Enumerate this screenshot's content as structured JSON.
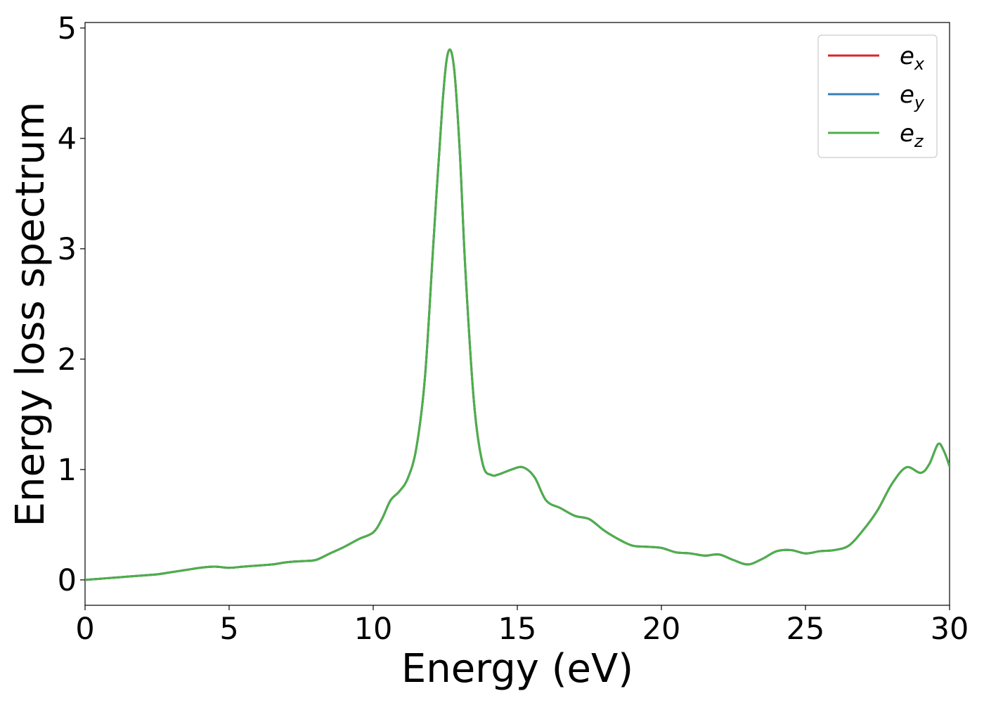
{
  "chart_data": {
    "type": "line",
    "xlabel": "Energy (eV)",
    "ylabel": "Energy loss spectrum",
    "xlim": [
      0,
      30
    ],
    "ylim": [
      -0.23,
      5.05
    ],
    "xticks": [
      "0",
      "5",
      "10",
      "15",
      "20",
      "25",
      "30"
    ],
    "yticks": [
      "0",
      "1",
      "2",
      "3",
      "4",
      "5"
    ],
    "grid": false,
    "legend_position": "top-right",
    "x": [
      0,
      0.5,
      1,
      1.5,
      2,
      2.5,
      3,
      3.5,
      4,
      4.5,
      5,
      5.5,
      6,
      6.5,
      7,
      7.5,
      8,
      8.5,
      9,
      9.5,
      10,
      10.3,
      10.6,
      10.9,
      11.2,
      11.5,
      11.8,
      12.1,
      12.4,
      12.6,
      12.8,
      13.0,
      13.2,
      13.5,
      13.8,
      14.1,
      14.4,
      14.8,
      15.2,
      15.6,
      16.0,
      16.5,
      17.0,
      17.5,
      18.0,
      18.5,
      19.0,
      19.5,
      20.0,
      20.5,
      21.0,
      21.5,
      22.0,
      22.5,
      23.0,
      23.5,
      24.0,
      24.5,
      25.0,
      25.5,
      26.0,
      26.5,
      27.0,
      27.5,
      28.0,
      28.5,
      29.0,
      29.3,
      29.6,
      29.8,
      30.0
    ],
    "series": [
      {
        "name": "e",
        "subscript": "x",
        "color": "#d62728",
        "values": [
          0.0,
          0.01,
          0.02,
          0.03,
          0.04,
          0.05,
          0.07,
          0.09,
          0.11,
          0.12,
          0.11,
          0.12,
          0.13,
          0.14,
          0.16,
          0.17,
          0.18,
          0.24,
          0.3,
          0.37,
          0.43,
          0.55,
          0.72,
          0.8,
          0.92,
          1.2,
          1.85,
          3.1,
          4.3,
          4.78,
          4.65,
          3.9,
          2.8,
          1.6,
          1.05,
          0.95,
          0.96,
          1.0,
          1.02,
          0.93,
          0.72,
          0.65,
          0.58,
          0.55,
          0.45,
          0.37,
          0.31,
          0.3,
          0.29,
          0.25,
          0.24,
          0.22,
          0.23,
          0.18,
          0.14,
          0.19,
          0.26,
          0.27,
          0.24,
          0.26,
          0.27,
          0.31,
          0.45,
          0.63,
          0.87,
          1.02,
          0.97,
          1.05,
          1.23,
          1.17,
          1.03
        ]
      },
      {
        "name": "e",
        "subscript": "y",
        "color": "#377eb8",
        "values": [
          0.0,
          0.01,
          0.02,
          0.03,
          0.04,
          0.05,
          0.07,
          0.09,
          0.11,
          0.12,
          0.11,
          0.12,
          0.13,
          0.14,
          0.16,
          0.17,
          0.18,
          0.24,
          0.3,
          0.37,
          0.43,
          0.55,
          0.72,
          0.8,
          0.92,
          1.2,
          1.85,
          3.1,
          4.3,
          4.78,
          4.65,
          3.9,
          2.8,
          1.6,
          1.05,
          0.95,
          0.96,
          1.0,
          1.02,
          0.93,
          0.72,
          0.65,
          0.58,
          0.55,
          0.45,
          0.37,
          0.31,
          0.3,
          0.29,
          0.25,
          0.24,
          0.22,
          0.23,
          0.18,
          0.14,
          0.19,
          0.26,
          0.27,
          0.24,
          0.26,
          0.27,
          0.31,
          0.45,
          0.63,
          0.87,
          1.02,
          0.97,
          1.05,
          1.23,
          1.17,
          1.03
        ]
      },
      {
        "name": "e",
        "subscript": "z",
        "color": "#4daf4a",
        "values": [
          0.0,
          0.01,
          0.02,
          0.03,
          0.04,
          0.05,
          0.07,
          0.09,
          0.11,
          0.12,
          0.11,
          0.12,
          0.13,
          0.14,
          0.16,
          0.17,
          0.18,
          0.24,
          0.3,
          0.37,
          0.43,
          0.55,
          0.72,
          0.8,
          0.92,
          1.2,
          1.85,
          3.1,
          4.3,
          4.78,
          4.65,
          3.9,
          2.8,
          1.6,
          1.05,
          0.95,
          0.96,
          1.0,
          1.02,
          0.93,
          0.72,
          0.65,
          0.58,
          0.55,
          0.45,
          0.37,
          0.31,
          0.3,
          0.29,
          0.25,
          0.24,
          0.22,
          0.23,
          0.18,
          0.14,
          0.19,
          0.26,
          0.27,
          0.24,
          0.26,
          0.27,
          0.31,
          0.45,
          0.63,
          0.87,
          1.02,
          0.97,
          1.05,
          1.23,
          1.17,
          1.03
        ]
      }
    ]
  }
}
